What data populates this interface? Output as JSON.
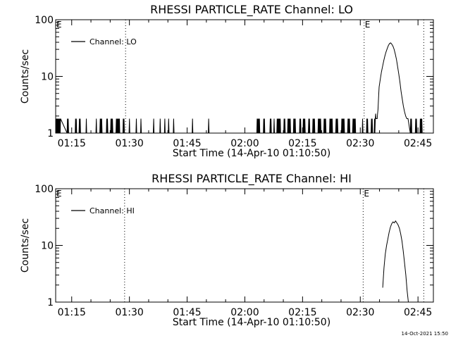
{
  "chart_data": [
    {
      "type": "line",
      "title": "RHESSI PARTICLE_RATE Channel: LO",
      "xlabel": "Start Time (14-Apr-10 01:10:50)",
      "ylabel": "Counts/sec",
      "yscale": "log",
      "xlim": [
        "01:10:50",
        "02:49:00"
      ],
      "ylim": [
        1,
        100
      ],
      "x_ticks": [
        "01:15",
        "01:30",
        "01:45",
        "02:00",
        "02:15",
        "02:30",
        "02:45"
      ],
      "y_ticks": [
        "1",
        "10",
        "100"
      ],
      "markers": [
        {
          "label": "E",
          "time": "01:10:50"
        },
        {
          "label": "",
          "time": "01:29:00"
        },
        {
          "label": "E",
          "time": "02:31:00"
        },
        {
          "label": "",
          "time": "02:46:30"
        }
      ],
      "legend": {
        "position": "top-left",
        "entries": [
          "Channel: LO"
        ]
      },
      "series": [
        {
          "name": "Channel: LO",
          "x": [
            "01:10:54",
            "01:11:00",
            "01:11:06",
            "01:11:12",
            "01:11:18",
            "01:11:24",
            "01:11:30",
            "01:11:36",
            "01:11:42",
            "01:11:48",
            "01:11:54",
            "01:12:00",
            "01:12:06",
            "01:13:48",
            "01:13:54",
            "01:14:00",
            "01:14:06",
            "01:14:12",
            "01:15:54",
            "01:16:00",
            "01:16:06",
            "01:16:12",
            "01:16:18",
            "01:16:54",
            "01:17:00",
            "01:17:06",
            "01:17:12",
            "01:17:18",
            "01:18:42",
            "01:18:48",
            "01:18:54",
            "01:21:18",
            "01:21:24",
            "01:21:30",
            "01:22:18",
            "01:22:24",
            "01:22:30",
            "01:22:36",
            "01:22:42",
            "01:22:48",
            "01:22:54",
            "01:24:00",
            "01:24:06",
            "01:24:12",
            "01:24:18",
            "01:24:24",
            "01:25:06",
            "01:25:12",
            "01:25:18",
            "01:25:24",
            "01:25:30",
            "01:25:36",
            "01:25:42",
            "01:26:30",
            "01:26:36",
            "01:26:42",
            "01:26:48",
            "01:26:54",
            "01:27:00",
            "01:27:06",
            "01:27:12",
            "01:27:18",
            "01:27:24",
            "01:27:30",
            "01:28:18",
            "01:28:24",
            "01:28:30",
            "01:28:36",
            "01:28:42",
            "01:29:54",
            "01:30:00",
            "01:30:06",
            "01:31:42",
            "01:31:48",
            "01:31:54",
            "01:32:54",
            "01:33:00",
            "01:33:06",
            "01:36:12",
            "01:36:18",
            "01:36:24",
            "01:37:54",
            "01:38:00",
            "01:38:06",
            "01:39:06",
            "01:39:12",
            "01:39:18",
            "01:40:06",
            "01:40:12",
            "01:40:18",
            "01:41:24",
            "01:41:30",
            "01:41:36",
            "01:46:18",
            "01:46:24",
            "01:46:30",
            "01:50:30",
            "01:50:36",
            "01:50:42",
            "02:03:06",
            "02:03:12",
            "02:03:18",
            "02:03:24",
            "02:03:30",
            "02:03:36",
            "02:03:42",
            "02:03:48",
            "02:03:54",
            "02:04:48",
            "02:04:54",
            "02:05:00",
            "02:05:06",
            "02:05:12",
            "02:05:18",
            "02:06:30",
            "02:06:36",
            "02:06:42",
            "02:06:48",
            "02:06:54",
            "02:07:00",
            "02:07:30",
            "02:07:36",
            "02:07:42",
            "02:08:18",
            "02:08:24",
            "02:08:30",
            "02:08:36",
            "02:08:42",
            "02:08:48",
            "02:08:54",
            "02:09:00",
            "02:09:06",
            "02:09:12",
            "02:09:18",
            "02:09:24",
            "02:10:06",
            "02:10:12",
            "02:10:18",
            "02:10:24",
            "02:10:30",
            "02:11:06",
            "02:11:12",
            "02:11:18",
            "02:11:24",
            "02:11:30",
            "02:11:36",
            "02:11:42",
            "02:11:48",
            "02:11:54",
            "02:12:00",
            "02:12:36",
            "02:12:42",
            "02:12:48",
            "02:12:54",
            "02:13:00",
            "02:13:06",
            "02:13:12",
            "02:13:18",
            "02:14:12",
            "02:14:18",
            "02:14:24",
            "02:14:30",
            "02:14:36",
            "02:15:06",
            "02:15:12",
            "02:15:18",
            "02:15:24",
            "02:15:30",
            "02:15:36",
            "02:15:42",
            "02:15:48",
            "02:16:30",
            "02:16:36",
            "02:16:42",
            "02:16:48",
            "02:16:54",
            "02:17:36",
            "02:17:42",
            "02:17:48",
            "02:17:54",
            "02:18:00",
            "02:18:06",
            "02:18:12",
            "02:19:00",
            "02:19:06",
            "02:19:12",
            "02:19:18",
            "02:19:24",
            "02:19:30",
            "02:19:36",
            "02:19:42",
            "02:19:48",
            "02:20:30",
            "02:20:36",
            "02:20:42",
            "02:20:48",
            "02:20:54",
            "02:21:00",
            "02:21:06",
            "02:22:00",
            "02:22:06",
            "02:22:12",
            "02:22:18",
            "02:22:24",
            "02:22:30",
            "02:22:36",
            "02:22:42",
            "02:22:48",
            "02:22:54",
            "02:23:36",
            "02:23:42",
            "02:23:48",
            "02:23:54",
            "02:24:00",
            "02:24:06",
            "02:24:12",
            "02:24:18",
            "02:25:06",
            "02:25:12",
            "02:25:18",
            "02:25:24",
            "02:25:30",
            "02:25:36",
            "02:25:42",
            "02:25:48",
            "02:25:54",
            "02:26:42",
            "02:26:48",
            "02:26:54",
            "02:27:00",
            "02:27:06",
            "02:27:12",
            "02:27:18",
            "02:28:00",
            "02:28:06",
            "02:28:12",
            "02:28:18",
            "02:28:24",
            "02:28:30",
            "02:28:36",
            "02:28:42",
            "02:28:48",
            "02:30:30",
            "02:30:36",
            "02:30:42",
            "02:31:36",
            "02:31:42",
            "02:31:48",
            "02:31:54",
            "02:32:00",
            "02:32:48",
            "02:32:54",
            "02:33:00",
            "02:33:06",
            "02:33:12",
            "02:33:36",
            "02:33:42",
            "02:33:48",
            "02:33:54",
            "02:34:00",
            "02:34:06",
            "02:34:24",
            "02:34:30",
            "02:34:36",
            "02:34:42",
            "02:34:48",
            "02:34:54",
            "02:35:12",
            "02:35:30",
            "02:35:48",
            "02:36:06",
            "02:36:24",
            "02:36:42",
            "02:37:00",
            "02:37:18",
            "02:37:36",
            "02:37:54",
            "02:38:12",
            "02:38:30",
            "02:38:48",
            "02:39:06",
            "02:39:24",
            "02:39:42",
            "02:40:00",
            "02:40:18",
            "02:40:36",
            "02:40:54",
            "02:41:12",
            "02:41:30",
            "02:41:48",
            "02:42:06",
            "02:42:24",
            "02:43:00",
            "02:43:06",
            "02:43:12",
            "02:43:18",
            "02:43:24",
            "02:44:18",
            "02:44:24",
            "02:44:30",
            "02:44:36",
            "02:44:42",
            "02:45:30",
            "02:45:36",
            "02:45:42",
            "02:45:48",
            "02:45:54",
            "02:46:00",
            "02:46:06"
          ],
          "y": [
            1.8,
            1,
            1.8,
            1,
            1.8,
            1,
            1.8,
            1,
            1.8,
            1,
            1.8,
            1,
            1.8,
            1,
            1.8,
            1,
            1.8,
            1,
            1,
            1.8,
            1,
            1.8,
            1,
            1,
            1.8,
            1,
            1.8,
            1,
            1,
            1.8,
            1,
            1,
            1.8,
            1,
            1,
            1.8,
            1,
            1.8,
            1,
            1.8,
            1,
            1,
            1.8,
            1,
            1.8,
            1,
            1,
            1.8,
            1,
            1.8,
            1,
            1.8,
            1,
            1,
            1.8,
            1,
            1.8,
            1,
            1.8,
            1,
            1.8,
            1,
            1.8,
            1,
            1,
            1.8,
            1,
            1.8,
            1,
            1,
            1.8,
            1,
            1,
            1.8,
            1,
            1,
            1.8,
            1,
            1,
            1.8,
            1,
            1,
            1.8,
            1,
            1,
            1.8,
            1,
            1,
            1.8,
            1,
            1,
            1.8,
            1,
            1,
            1.8,
            1,
            1,
            1.8,
            1,
            1,
            1.8,
            1,
            1.8,
            1,
            1.8,
            1,
            1.8,
            1,
            1,
            1.8,
            1,
            1.8,
            1,
            1,
            1,
            1.8,
            1,
            1.8,
            1,
            1,
            1,
            1.8,
            1,
            1,
            1.8,
            1,
            1.8,
            1,
            1.8,
            1,
            1.8,
            1,
            1.8,
            1,
            1,
            1,
            1.8,
            1,
            1.8,
            1,
            1,
            1.8,
            1,
            1.8,
            1,
            1.8,
            1,
            1.8,
            1,
            1,
            1,
            1.8,
            1,
            1.8,
            1,
            1.8,
            1,
            1,
            1,
            1.8,
            1,
            1.8,
            1,
            1,
            1.8,
            1,
            1.8,
            1,
            1.8,
            1,
            1,
            1,
            1.8,
            1,
            1.8,
            1,
            1,
            1.8,
            1,
            1.8,
            1,
            1.8,
            1,
            1,
            1.8,
            1,
            1.8,
            1,
            1.8,
            1,
            1.8,
            1,
            1,
            1.8,
            1,
            1.8,
            1,
            1.8,
            1,
            1,
            1.8,
            1,
            1.8,
            1,
            1.8,
            1,
            1.8,
            1,
            1,
            1,
            1.8,
            1,
            1.8,
            1,
            1.8,
            1,
            1,
            1,
            1.8,
            1,
            1.8,
            1,
            1.8,
            1,
            1.8,
            1,
            1,
            1.8,
            1,
            1.8,
            1,
            1.8,
            1,
            1,
            1.8,
            1,
            1.8,
            1,
            1.8,
            1,
            1.8,
            1,
            1,
            1.8,
            1,
            1,
            1.8,
            1,
            1.8,
            1,
            1,
            1.8,
            1,
            1.8,
            1,
            1,
            1.8,
            1,
            1.8,
            2.2,
            1.8,
            1.8,
            2.2,
            2.6,
            3.5,
            5,
            6.5,
            9,
            12,
            15,
            19,
            23,
            27,
            31,
            35,
            38,
            39,
            37,
            34,
            30,
            25,
            20,
            15,
            11,
            8,
            5.5,
            4,
            3,
            2.4,
            2,
            1.8,
            1.8,
            1,
            1.8,
            1,
            1.8,
            1,
            1,
            1.8,
            1,
            1.8,
            1,
            1,
            1.8,
            1,
            1.8,
            1,
            1.8,
            1
          ]
        }
      ]
    },
    {
      "type": "line",
      "title": "RHESSI PARTICLE_RATE Channel: HI",
      "xlabel": "Start Time (14-Apr-10 01:10:50)",
      "ylabel": "Counts/sec",
      "yscale": "log",
      "xlim": [
        "01:10:50",
        "02:49:00"
      ],
      "ylim": [
        1,
        100
      ],
      "x_ticks": [
        "01:15",
        "01:30",
        "01:45",
        "02:00",
        "02:15",
        "02:30",
        "02:45"
      ],
      "y_ticks": [
        "1",
        "10",
        "100"
      ],
      "markers": [
        {
          "label": "E",
          "time": "01:10:50"
        },
        {
          "label": "",
          "time": "01:28:45"
        },
        {
          "label": "E",
          "time": "02:30:45"
        },
        {
          "label": "",
          "time": "02:46:30"
        }
      ],
      "legend": {
        "position": "top-left",
        "entries": [
          "Channel: HI"
        ]
      },
      "series": [
        {
          "name": "Channel: HI",
          "x": [
            "02:35:50",
            "02:36:10",
            "02:36:30",
            "02:36:50",
            "02:37:10",
            "02:37:30",
            "02:37:50",
            "02:38:10",
            "02:38:30",
            "02:38:50",
            "02:39:10",
            "02:39:30",
            "02:39:50",
            "02:40:10",
            "02:40:30",
            "02:40:50",
            "02:41:10",
            "02:41:30",
            "02:41:50",
            "02:42:10",
            "02:42:30"
          ],
          "y": [
            1.8,
            4,
            7,
            10,
            13,
            17,
            21,
            24,
            26,
            25,
            27,
            25,
            23,
            20,
            16,
            12,
            8,
            5,
            3,
            1.6,
            1
          ]
        }
      ]
    }
  ],
  "footer_text": "14-Oct-2021 15:50"
}
